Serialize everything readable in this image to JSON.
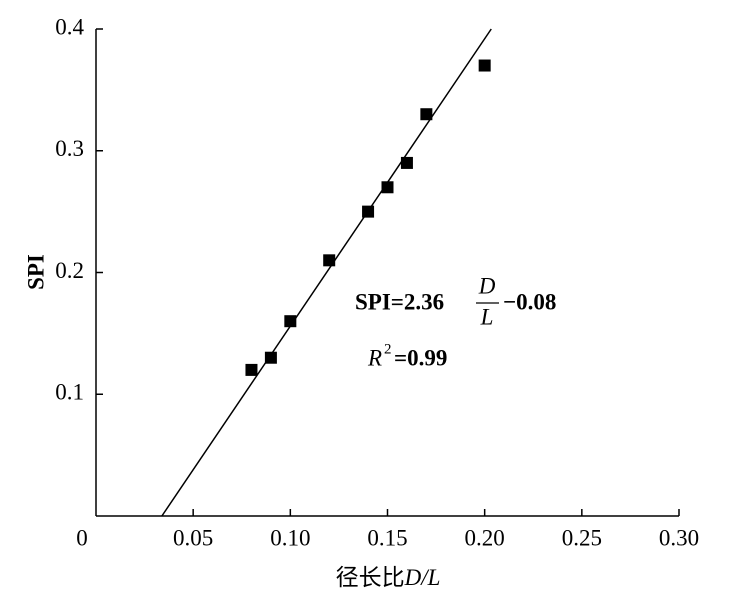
{
  "chart_data": {
    "type": "scatter",
    "xlabel": "径长比",
    "xlabel_italic": "D/L",
    "ylabel": "SPI",
    "x": [
      0.08,
      0.09,
      0.1,
      0.12,
      0.14,
      0.15,
      0.16,
      0.17,
      0.2
    ],
    "values": [
      0.12,
      0.13,
      0.16,
      0.21,
      0.25,
      0.27,
      0.29,
      0.33,
      0.37
    ],
    "color": "#000000",
    "xlim": [
      0,
      0.3
    ],
    "xticks": [
      0,
      0.05,
      {
        "value": 0.1,
        "label": "0.10"
      },
      0.15,
      {
        "value": 0.2,
        "label": "0.20"
      },
      0.25,
      {
        "value": 0.3,
        "label": "0.30"
      }
    ],
    "ylim": [
      0,
      0.4
    ],
    "yticks": [
      0.1,
      0.2,
      0.3,
      0.4
    ],
    "fit": {
      "slope": 2.36,
      "intercept": -0.08
    },
    "equation": {
      "lhs": "SPI=2.36",
      "numerator": "D",
      "denominator": "L",
      "rhs": "−0.08"
    },
    "r2": {
      "symbol": "R",
      "exponent": "2",
      "value": "=0.99"
    }
  }
}
